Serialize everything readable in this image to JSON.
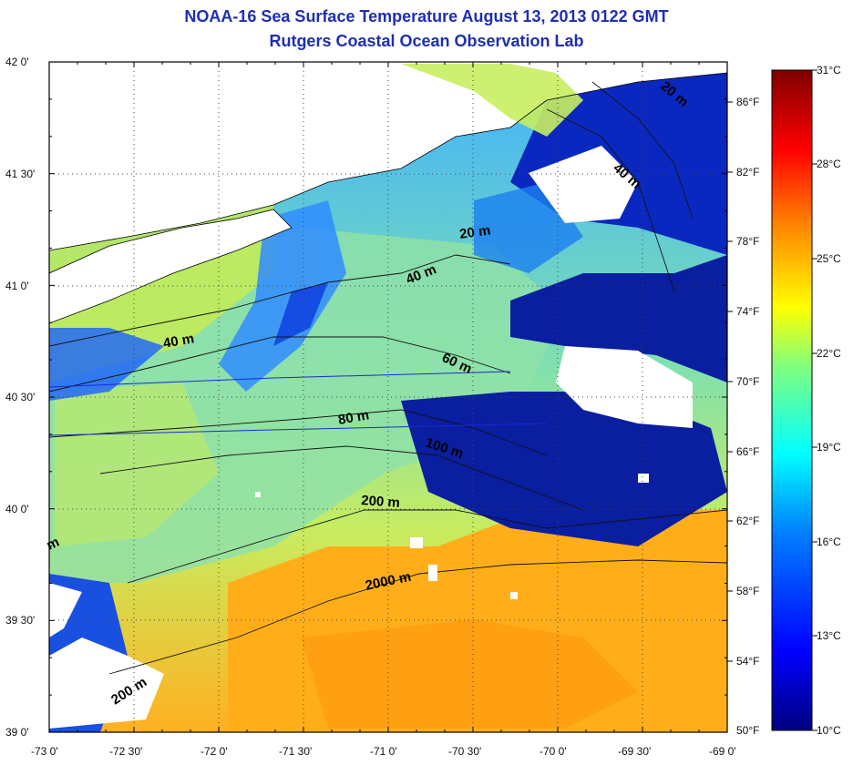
{
  "title": {
    "line1": "NOAA-16 Sea Surface Temperature August 13, 2013 0122 GMT",
    "line2": "Rutgers Coastal Ocean Observation Lab"
  },
  "axes": {
    "lat_labels": [
      "42 0'",
      "41 30'",
      "41 0'",
      "40 30'",
      "40 0'",
      "39 30'",
      "39 0'"
    ],
    "lon_labels": [
      "-73 0'",
      "-72 30'",
      "-72 0'",
      "-71 30'",
      "-71 0'",
      "-70 30'",
      "-70 0'",
      "-69 30'",
      "-69 0'"
    ],
    "fahrenheit_labels": [
      "86°F",
      "82°F",
      "78°F",
      "74°F",
      "70°F",
      "66°F",
      "62°F",
      "58°F",
      "54°F",
      "50°F"
    ],
    "celsius_labels": [
      "31°C",
      "28°C",
      "25°C",
      "22°C",
      "19°C",
      "16°C",
      "13°C",
      "10°C"
    ]
  },
  "contours": [
    {
      "label": "20 m"
    },
    {
      "label": "40 m"
    },
    {
      "label": "40 m"
    },
    {
      "label": "60 m"
    },
    {
      "label": "80 m"
    },
    {
      "label": "100 m"
    },
    {
      "label": "200 m"
    },
    {
      "label": "2000 m"
    },
    {
      "label": "200 m"
    },
    {
      "label": "20 m"
    },
    {
      "label": "40 m"
    },
    {
      "label": "m"
    }
  ],
  "colorbar": {
    "min_c": 10,
    "max_c": 31,
    "colors": [
      "#00007f",
      "#0000ff",
      "#0080ff",
      "#00ffff",
      "#80ff80",
      "#ffff00",
      "#ff8000",
      "#ff0000",
      "#7f0000"
    ]
  },
  "colors": {
    "title": "#1f2fb0",
    "land": "#ffffff",
    "cold": "#0a1ea0",
    "cool": "#2f8cff",
    "mid": "#8fe09a",
    "warm": "#ffb21a"
  }
}
